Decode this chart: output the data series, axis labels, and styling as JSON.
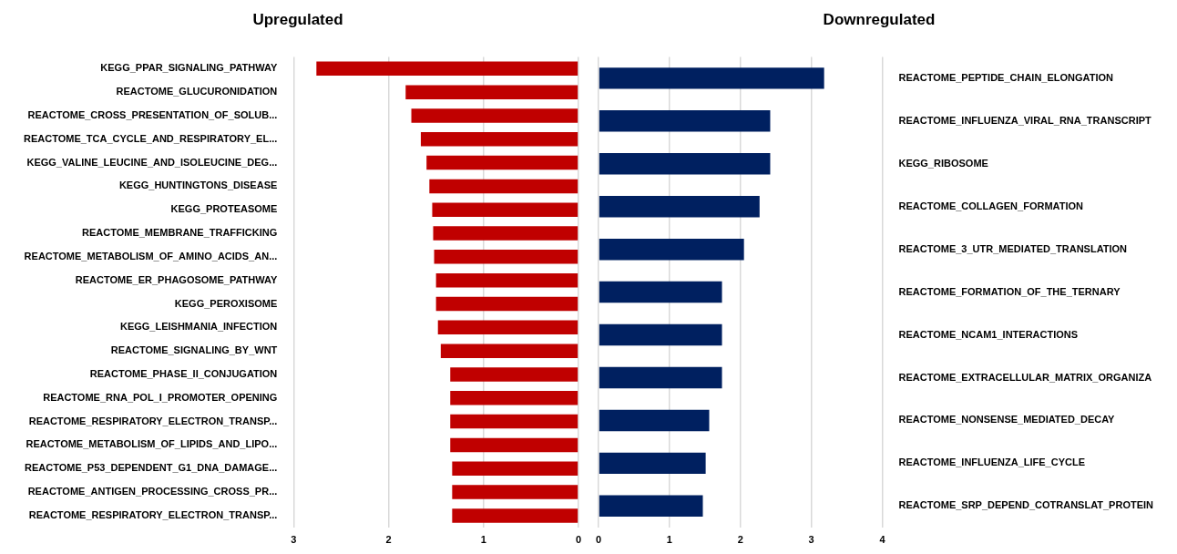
{
  "chart_data": [
    {
      "type": "bar",
      "title": "Upregulated",
      "orientation": "horizontal",
      "grid": "x",
      "xlim": [
        3,
        0
      ],
      "xticks": [
        3,
        2,
        1,
        0
      ],
      "categories": [
        "KEGG_PPAR_SIGNALING_PATHWAY",
        "REACTOME_GLUCURONIDATION",
        "REACTOME_CROSS_PRESENTATION_OF_SOLUB...",
        "REACTOME_TCA_CYCLE_AND_RESPIRATORY_EL...",
        "KEGG_VALINE_LEUCINE_AND_ISOLEUCINE_DEG...",
        "KEGG_HUNTINGTONS_DISEASE",
        "KEGG_PROTEASOME",
        "REACTOME_MEMBRANE_TRAFFICKING",
        "REACTOME_METABOLISM_OF_AMINO_ACIDS_AN...",
        "REACTOME_ER_PHAGOSOME_PATHWAY",
        "KEGG_PEROXISOME",
        "KEGG_LEISHMANIA_INFECTION",
        "REACTOME_SIGNALING_BY_WNT",
        "REACTOME_PHASE_II_CONJUGATION",
        "REACTOME_RNA_POL_I_PROMOTER_OPENING",
        "REACTOME_RESPIRATORY_ELECTRON_TRANSP...",
        "REACTOME_METABOLISM_OF_LIPIDS_AND_LIPO...",
        "REACTOME_P53_DEPENDENT_G1_DNA_DAMAGE...",
        "REACTOME_ANTIGEN_PROCESSING_CROSS_PR...",
        "REACTOME_RESPIRATORY_ELECTRON_TRANSP..."
      ],
      "values": [
        2.76,
        1.82,
        1.76,
        1.66,
        1.6,
        1.57,
        1.54,
        1.53,
        1.52,
        1.5,
        1.5,
        1.48,
        1.45,
        1.35,
        1.35,
        1.35,
        1.35,
        1.33,
        1.33,
        1.33
      ],
      "color": "#c00000"
    },
    {
      "type": "bar",
      "title": "Downregulated",
      "orientation": "horizontal",
      "grid": "x",
      "xlim": [
        0,
        4
      ],
      "xticks": [
        0,
        1,
        2,
        3,
        4
      ],
      "categories": [
        "REACTOME_PEPTIDE_CHAIN_ELONGATION",
        "REACTOME_INFLUENZA_VIRAL_RNA_TRANSCRIPT",
        "KEGG_RIBOSOME",
        "REACTOME_COLLAGEN_FORMATION",
        "REACTOME_3_UTR_MEDIATED_TRANSLATION",
        "REACTOME_FORMATION_OF_THE_TERNARY",
        "REACTOME_NCAM1_INTERACTIONS",
        "REACTOME_EXTRACELLULAR_MATRIX_ORGANIZA",
        "REACTOME_NONSENSE_MEDIATED_DECAY",
        "REACTOME_INFLUENZA_LIFE_CYCLE",
        "REACTOME_SRP_DEPEND_COTRANSLAT_PROTEIN"
      ],
      "values": [
        3.18,
        2.42,
        2.42,
        2.27,
        2.05,
        1.74,
        1.74,
        1.74,
        1.56,
        1.51,
        1.47
      ],
      "color": "#002060"
    }
  ]
}
